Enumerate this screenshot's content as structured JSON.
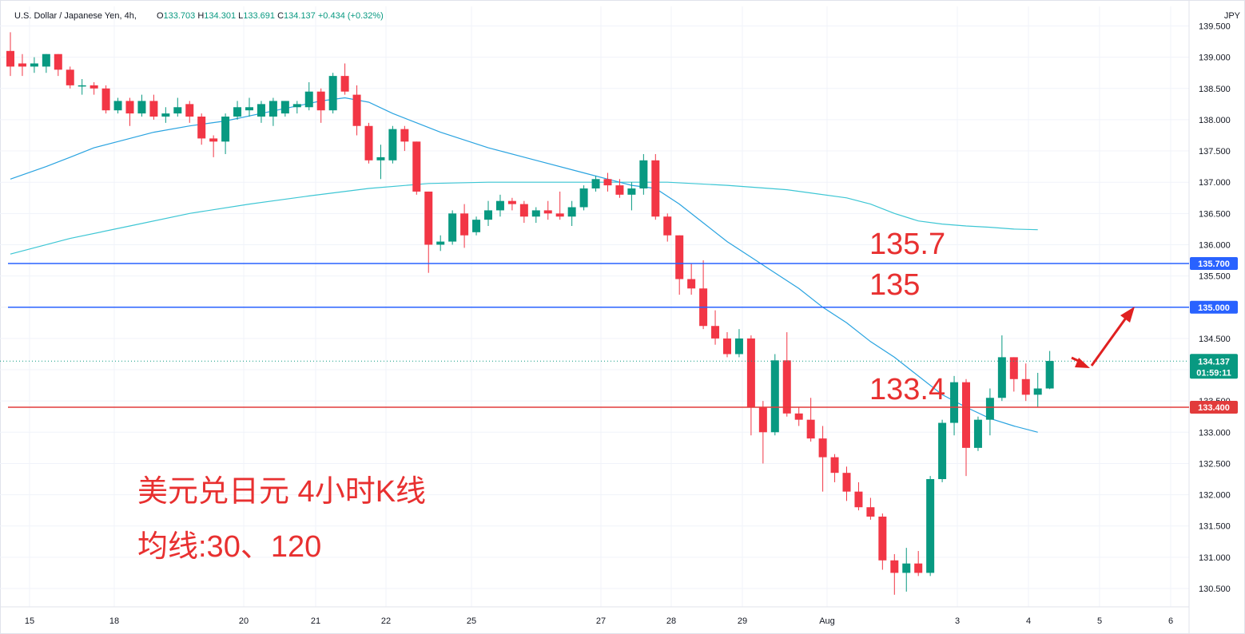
{
  "header": {
    "symbol": "U.S. Dollar / Japanese Yen, 4h,",
    "o_label": "O",
    "o_value": "133.703",
    "h_label": "H",
    "h_value": "134.301",
    "l_label": "L",
    "l_value": "133.691",
    "c_label": "C",
    "c_value": "134.137",
    "change": "+0.434 (+0.32%)"
  },
  "currency": "JPY",
  "annotations": {
    "title_line1": "美元兑日元 4小时K线",
    "title_line2": "均线:30、120",
    "level_1": "135.7",
    "level_2": "135",
    "level_3": "133.4"
  },
  "colors": {
    "up": "#089981",
    "down": "#f23645",
    "ma30": "#29a3e0",
    "ma120": "#3dc6d4",
    "level_blue": "#2962ff",
    "level_red": "#e23b3b",
    "annotation": "#e83030"
  },
  "chart_data": {
    "type": "candlestick",
    "y_axis": {
      "min": 130.5,
      "max": 139.5,
      "ticks": [
        "139.500",
        "139.000",
        "138.500",
        "138.000",
        "137.500",
        "137.000",
        "136.500",
        "136.000",
        "135.500",
        "135.000",
        "134.500",
        "134.000",
        "133.500",
        "133.000",
        "132.500",
        "132.000",
        "131.500",
        "131.000",
        "130.500"
      ]
    },
    "x_axis": {
      "labels": [
        "15",
        "18",
        "20",
        "21",
        "22",
        "25",
        "27",
        "28",
        "29",
        "Aug",
        "3",
        "4",
        "5",
        "6"
      ]
    },
    "price_lines": [
      {
        "value": 135.7,
        "label": "135.700",
        "style": "blue"
      },
      {
        "value": 135.0,
        "label": "135.000",
        "style": "blue"
      },
      {
        "value": 133.4,
        "label": "133.400",
        "style": "red"
      }
    ],
    "last_price": {
      "value": 134.137,
      "label": "134.137",
      "countdown": "01:59:11"
    },
    "candles": [
      {
        "o": 139.1,
        "h": 139.4,
        "l": 138.7,
        "c": 138.85
      },
      {
        "o": 138.9,
        "h": 139.05,
        "l": 138.7,
        "c": 138.85
      },
      {
        "o": 138.85,
        "h": 139.0,
        "l": 138.75,
        "c": 138.9
      },
      {
        "o": 138.85,
        "h": 139.05,
        "l": 138.75,
        "c": 139.05
      },
      {
        "o": 139.05,
        "h": 139.05,
        "l": 138.7,
        "c": 138.8
      },
      {
        "o": 138.8,
        "h": 138.85,
        "l": 138.5,
        "c": 138.55
      },
      {
        "o": 138.55,
        "h": 138.65,
        "l": 138.4,
        "c": 138.55
      },
      {
        "o": 138.55,
        "h": 138.6,
        "l": 138.4,
        "c": 138.5
      },
      {
        "o": 138.5,
        "h": 138.55,
        "l": 138.1,
        "c": 138.15
      },
      {
        "o": 138.15,
        "h": 138.35,
        "l": 138.1,
        "c": 138.3
      },
      {
        "o": 138.3,
        "h": 138.35,
        "l": 137.9,
        "c": 138.1
      },
      {
        "o": 138.1,
        "h": 138.4,
        "l": 138.05,
        "c": 138.3
      },
      {
        "o": 138.3,
        "h": 138.4,
        "l": 138.0,
        "c": 138.05
      },
      {
        "o": 138.05,
        "h": 138.2,
        "l": 137.95,
        "c": 138.1
      },
      {
        "o": 138.1,
        "h": 138.35,
        "l": 138.05,
        "c": 138.2
      },
      {
        "o": 138.25,
        "h": 138.3,
        "l": 137.95,
        "c": 138.05
      },
      {
        "o": 138.05,
        "h": 138.1,
        "l": 137.6,
        "c": 137.7
      },
      {
        "o": 137.7,
        "h": 137.75,
        "l": 137.4,
        "c": 137.65
      },
      {
        "o": 137.65,
        "h": 138.1,
        "l": 137.45,
        "c": 138.05
      },
      {
        "o": 138.05,
        "h": 138.3,
        "l": 138.0,
        "c": 138.2
      },
      {
        "o": 138.15,
        "h": 138.35,
        "l": 138.05,
        "c": 138.2
      },
      {
        "o": 138.05,
        "h": 138.3,
        "l": 137.95,
        "c": 138.25
      },
      {
        "o": 138.05,
        "h": 138.35,
        "l": 137.9,
        "c": 138.3
      },
      {
        "o": 138.1,
        "h": 138.3,
        "l": 138.05,
        "c": 138.3
      },
      {
        "o": 138.2,
        "h": 138.3,
        "l": 138.1,
        "c": 138.25
      },
      {
        "o": 138.2,
        "h": 138.6,
        "l": 138.15,
        "c": 138.45
      },
      {
        "o": 138.45,
        "h": 138.5,
        "l": 137.95,
        "c": 138.15
      },
      {
        "o": 138.15,
        "h": 138.75,
        "l": 138.1,
        "c": 138.7
      },
      {
        "o": 138.7,
        "h": 138.9,
        "l": 138.4,
        "c": 138.45
      },
      {
        "o": 138.4,
        "h": 138.55,
        "l": 137.75,
        "c": 137.9
      },
      {
        "o": 137.9,
        "h": 137.95,
        "l": 137.3,
        "c": 137.35
      },
      {
        "o": 137.35,
        "h": 137.6,
        "l": 137.05,
        "c": 137.4
      },
      {
        "o": 137.35,
        "h": 137.9,
        "l": 137.3,
        "c": 137.85
      },
      {
        "o": 137.85,
        "h": 137.9,
        "l": 137.5,
        "c": 137.65
      },
      {
        "o": 137.65,
        "h": 137.65,
        "l": 136.8,
        "c": 136.85
      },
      {
        "o": 136.85,
        "h": 136.85,
        "l": 135.55,
        "c": 136.0
      },
      {
        "o": 136.0,
        "h": 136.15,
        "l": 135.9,
        "c": 136.05
      },
      {
        "o": 136.05,
        "h": 136.55,
        "l": 136.0,
        "c": 136.5
      },
      {
        "o": 136.5,
        "h": 136.65,
        "l": 135.95,
        "c": 136.15
      },
      {
        "o": 136.2,
        "h": 136.45,
        "l": 136.15,
        "c": 136.4
      },
      {
        "o": 136.4,
        "h": 136.7,
        "l": 136.3,
        "c": 136.55
      },
      {
        "o": 136.55,
        "h": 136.8,
        "l": 136.45,
        "c": 136.7
      },
      {
        "o": 136.7,
        "h": 136.75,
        "l": 136.55,
        "c": 136.65
      },
      {
        "o": 136.65,
        "h": 136.7,
        "l": 136.35,
        "c": 136.45
      },
      {
        "o": 136.45,
        "h": 136.6,
        "l": 136.35,
        "c": 136.55
      },
      {
        "o": 136.55,
        "h": 136.7,
        "l": 136.4,
        "c": 136.5
      },
      {
        "o": 136.5,
        "h": 136.85,
        "l": 136.4,
        "c": 136.45
      },
      {
        "o": 136.45,
        "h": 136.7,
        "l": 136.3,
        "c": 136.6
      },
      {
        "o": 136.6,
        "h": 136.95,
        "l": 136.55,
        "c": 136.9
      },
      {
        "o": 136.9,
        "h": 137.1,
        "l": 136.85,
        "c": 137.05
      },
      {
        "o": 137.05,
        "h": 137.15,
        "l": 136.85,
        "c": 136.95
      },
      {
        "o": 136.95,
        "h": 137.05,
        "l": 136.75,
        "c": 136.8
      },
      {
        "o": 136.8,
        "h": 137.0,
        "l": 136.55,
        "c": 136.9
      },
      {
        "o": 136.9,
        "h": 137.45,
        "l": 136.8,
        "c": 137.35
      },
      {
        "o": 137.35,
        "h": 137.45,
        "l": 136.4,
        "c": 136.45
      },
      {
        "o": 136.45,
        "h": 136.5,
        "l": 136.05,
        "c": 136.15
      },
      {
        "o": 136.15,
        "h": 136.15,
        "l": 135.2,
        "c": 135.45
      },
      {
        "o": 135.45,
        "h": 135.7,
        "l": 135.2,
        "c": 135.3
      },
      {
        "o": 135.3,
        "h": 135.75,
        "l": 134.65,
        "c": 134.7
      },
      {
        "o": 134.7,
        "h": 134.95,
        "l": 134.4,
        "c": 134.5
      },
      {
        "o": 134.5,
        "h": 134.6,
        "l": 134.2,
        "c": 134.25
      },
      {
        "o": 134.25,
        "h": 134.65,
        "l": 134.2,
        "c": 134.5
      },
      {
        "o": 134.5,
        "h": 134.55,
        "l": 132.95,
        "c": 133.4
      },
      {
        "o": 133.4,
        "h": 133.5,
        "l": 132.5,
        "c": 133.0
      },
      {
        "o": 133.0,
        "h": 134.25,
        "l": 132.95,
        "c": 134.15
      },
      {
        "o": 134.15,
        "h": 134.6,
        "l": 133.25,
        "c": 133.3
      },
      {
        "o": 133.3,
        "h": 133.4,
        "l": 133.1,
        "c": 133.2
      },
      {
        "o": 133.2,
        "h": 133.55,
        "l": 132.85,
        "c": 132.9
      },
      {
        "o": 132.9,
        "h": 133.1,
        "l": 132.05,
        "c": 132.6
      },
      {
        "o": 132.6,
        "h": 132.65,
        "l": 132.2,
        "c": 132.35
      },
      {
        "o": 132.35,
        "h": 132.45,
        "l": 131.9,
        "c": 132.05
      },
      {
        "o": 132.05,
        "h": 132.2,
        "l": 131.75,
        "c": 131.8
      },
      {
        "o": 131.8,
        "h": 131.95,
        "l": 131.6,
        "c": 131.65
      },
      {
        "o": 131.65,
        "h": 131.7,
        "l": 130.8,
        "c": 130.95
      },
      {
        "o": 130.95,
        "h": 131.05,
        "l": 130.4,
        "c": 130.75
      },
      {
        "o": 130.75,
        "h": 131.15,
        "l": 130.45,
        "c": 130.9
      },
      {
        "o": 130.9,
        "h": 131.1,
        "l": 130.7,
        "c": 130.75
      },
      {
        "o": 130.75,
        "h": 132.3,
        "l": 130.7,
        "c": 132.25
      },
      {
        "o": 132.25,
        "h": 133.2,
        "l": 132.2,
        "c": 133.15
      },
      {
        "o": 133.15,
        "h": 133.9,
        "l": 132.95,
        "c": 133.8
      },
      {
        "o": 133.8,
        "h": 133.85,
        "l": 132.3,
        "c": 132.75
      },
      {
        "o": 132.75,
        "h": 133.25,
        "l": 132.7,
        "c": 133.2
      },
      {
        "o": 133.2,
        "h": 133.7,
        "l": 132.95,
        "c": 133.55
      },
      {
        "o": 133.55,
        "h": 134.55,
        "l": 133.5,
        "c": 134.2
      },
      {
        "o": 134.2,
        "h": 134.2,
        "l": 133.65,
        "c": 133.85
      },
      {
        "o": 133.85,
        "h": 134.1,
        "l": 133.5,
        "c": 133.6
      },
      {
        "o": 133.6,
        "h": 133.95,
        "l": 133.4,
        "c": 133.7
      },
      {
        "o": 133.7,
        "h": 134.3,
        "l": 133.69,
        "c": 134.14
      }
    ],
    "ma30": [
      [
        0,
        137.05
      ],
      [
        3,
        137.25
      ],
      [
        5,
        137.4
      ],
      [
        7,
        137.55
      ],
      [
        9,
        137.65
      ],
      [
        12,
        137.8
      ],
      [
        15,
        137.9
      ],
      [
        18,
        137.98
      ],
      [
        21,
        138.1
      ],
      [
        24,
        138.22
      ],
      [
        26,
        138.3
      ],
      [
        28,
        138.35
      ],
      [
        30,
        138.28
      ],
      [
        32,
        138.1
      ],
      [
        34,
        137.95
      ],
      [
        36,
        137.8
      ],
      [
        40,
        137.55
      ],
      [
        44,
        137.35
      ],
      [
        48,
        137.15
      ],
      [
        52,
        136.95
      ],
      [
        54,
        136.9
      ],
      [
        56,
        136.65
      ],
      [
        58,
        136.35
      ],
      [
        60,
        136.05
      ],
      [
        62,
        135.8
      ],
      [
        64,
        135.55
      ],
      [
        66,
        135.3
      ],
      [
        68,
        135.0
      ],
      [
        70,
        134.75
      ],
      [
        72,
        134.45
      ],
      [
        74,
        134.2
      ],
      [
        76,
        133.9
      ],
      [
        78,
        133.6
      ],
      [
        80,
        133.4
      ],
      [
        82,
        133.22
      ],
      [
        84,
        133.1
      ],
      [
        86,
        133.0
      ]
    ],
    "ma120": [
      [
        0,
        135.85
      ],
      [
        5,
        136.1
      ],
      [
        10,
        136.3
      ],
      [
        15,
        136.5
      ],
      [
        20,
        136.65
      ],
      [
        25,
        136.78
      ],
      [
        30,
        136.9
      ],
      [
        35,
        136.98
      ],
      [
        40,
        137.0
      ],
      [
        45,
        137.0
      ],
      [
        50,
        137.0
      ],
      [
        55,
        137.0
      ],
      [
        60,
        136.95
      ],
      [
        65,
        136.88
      ],
      [
        70,
        136.75
      ],
      [
        72,
        136.65
      ],
      [
        74,
        136.5
      ],
      [
        76,
        136.38
      ],
      [
        78,
        136.33
      ],
      [
        80,
        136.3
      ],
      [
        82,
        136.28
      ],
      [
        84,
        136.25
      ],
      [
        86,
        136.24
      ]
    ]
  }
}
